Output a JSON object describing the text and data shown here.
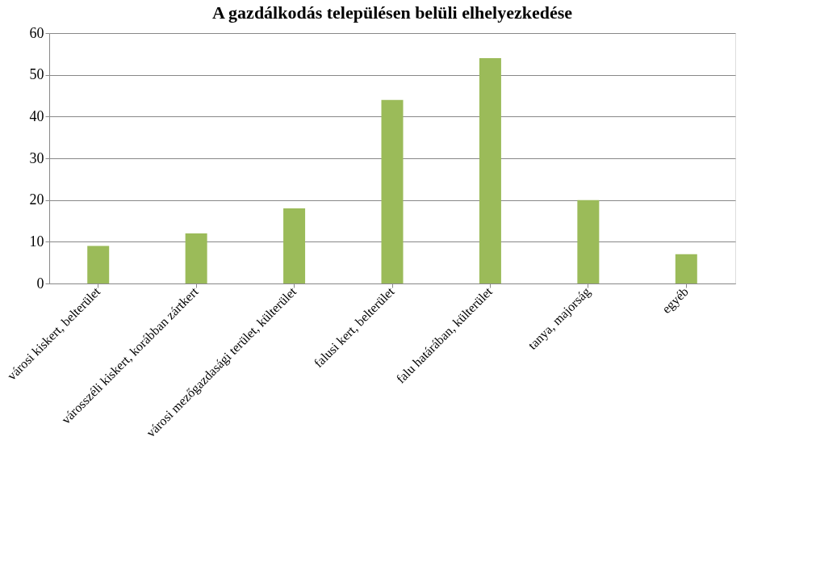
{
  "chart_data": {
    "type": "bar",
    "title": "A gazdálkodás településen belüli elhelyezkedése",
    "categories": [
      "városi kiskert, belterület",
      "városszéli kiskert, korábban zártkert",
      "városi mezőgazdasági terület, külterület",
      "falusi kert, belterület",
      "falu határában, külterület",
      "tanya, majorság",
      "egyéb"
    ],
    "values": [
      9,
      12,
      18,
      44,
      54,
      20,
      7
    ],
    "color": "#9bbb59",
    "ylim": [
      0,
      60
    ],
    "yticks": [
      0,
      10,
      20,
      30,
      40,
      50,
      60
    ],
    "grid": "y"
  }
}
